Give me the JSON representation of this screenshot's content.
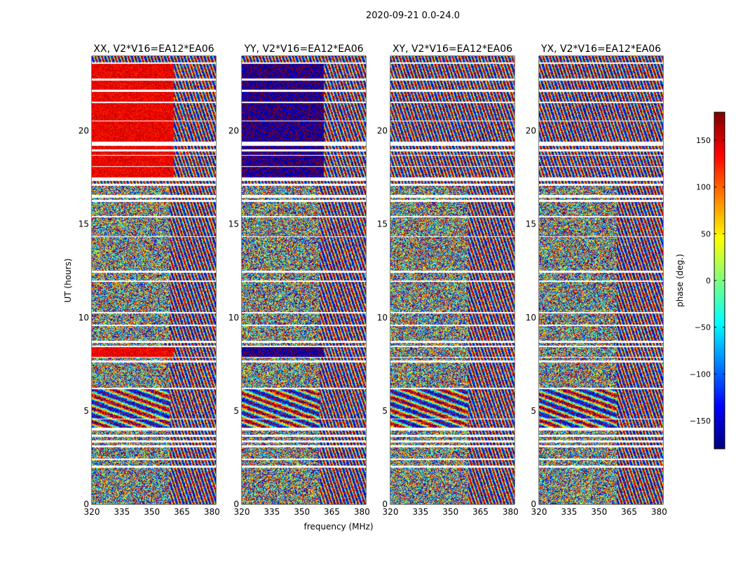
{
  "chart_data": {
    "type": "heatmap",
    "title": "2020-09-21 0.0-24.0",
    "xlabel": "frequency (MHz)",
    "ylabel": "UT (hours)",
    "xlim": [
      320,
      382
    ],
    "ylim": [
      0,
      24
    ],
    "xticks": [
      320,
      335,
      350,
      365,
      380
    ],
    "yticks": [
      0,
      5,
      10,
      15,
      20
    ],
    "panels": [
      {
        "name": "XX",
        "title": "XX, V2*V16=EA12*EA06",
        "coherent_phase_deg": 140,
        "coherent_cutoff_mhz": 361
      },
      {
        "name": "YY",
        "title": "YY, V2*V16=EA12*EA06",
        "coherent_phase_deg": -170,
        "coherent_cutoff_mhz": 361
      },
      {
        "name": "XY",
        "title": "XY, V2*V16=EA12*EA06",
        "coherent_phase_deg": null,
        "coherent_cutoff_mhz": null
      },
      {
        "name": "YX",
        "title": "YX, V2*V16=EA12*EA06",
        "coherent_phase_deg": null,
        "coherent_cutoff_mhz": null
      }
    ],
    "colorbar": {
      "label": "phase (deg.)",
      "range": [
        -180,
        180
      ],
      "ticks": [
        150,
        100,
        50,
        0,
        -50,
        -100,
        -150
      ],
      "tick_labels": [
        "150",
        "100",
        "50",
        "0",
        "−50",
        "−100",
        "−150"
      ],
      "colormap": "jet"
    },
    "coherent_time_ranges_hours": [
      [
        7.9,
        8.4
      ],
      [
        17.5,
        19.2
      ],
      [
        19.4,
        23.6
      ]
    ],
    "flagged_time_ranges_hours": [
      [
        1.95,
        2.05
      ],
      [
        2.35,
        2.45
      ],
      [
        3.05,
        3.15
      ],
      [
        3.3,
        3.4
      ],
      [
        3.6,
        3.7
      ],
      [
        3.95,
        4.1
      ],
      [
        4.55,
        4.6
      ],
      [
        6.15,
        6.25
      ],
      [
        7.6,
        7.7
      ],
      [
        7.85,
        7.9
      ],
      [
        8.4,
        8.5
      ],
      [
        8.65,
        8.75
      ],
      [
        9.55,
        9.6
      ],
      [
        10.2,
        10.3
      ],
      [
        11.9,
        12.0
      ],
      [
        12.4,
        12.5
      ],
      [
        14.3,
        14.35
      ],
      [
        15.35,
        15.45
      ],
      [
        16.2,
        16.3
      ],
      [
        16.4,
        16.55
      ],
      [
        17.05,
        17.15
      ],
      [
        17.3,
        17.5
      ],
      [
        18.05,
        18.1
      ],
      [
        18.65,
        18.7
      ],
      [
        18.9,
        19.0
      ],
      [
        19.2,
        19.4
      ],
      [
        20.5,
        20.55
      ],
      [
        21.5,
        21.55
      ],
      [
        22.1,
        22.2
      ],
      [
        22.7,
        22.8
      ],
      [
        23.6,
        23.65
      ]
    ]
  }
}
